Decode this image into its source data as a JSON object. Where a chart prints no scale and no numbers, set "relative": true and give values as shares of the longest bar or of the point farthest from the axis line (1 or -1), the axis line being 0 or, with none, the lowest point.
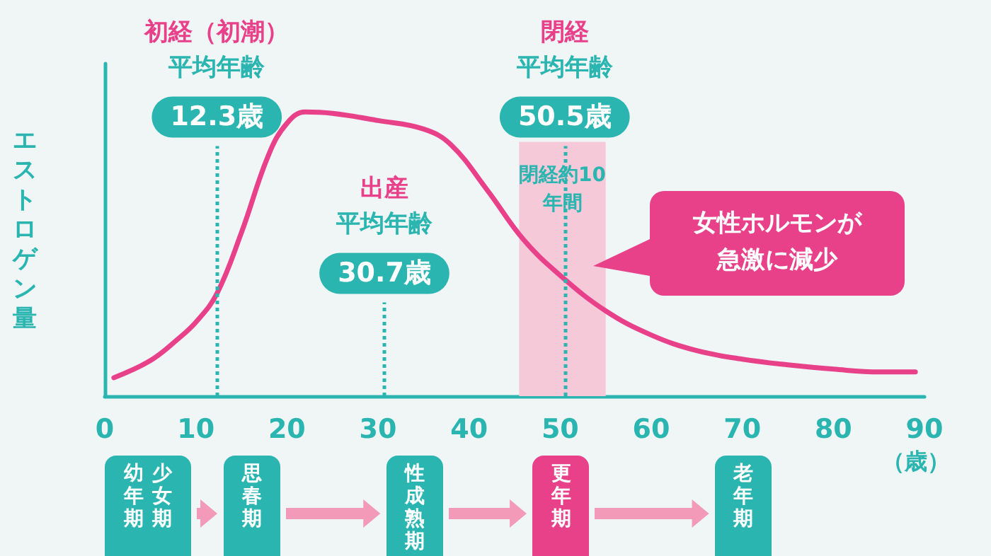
{
  "chart_data": {
    "type": "line",
    "relative": true,
    "ylabel": "エストロゲン量",
    "xlabel": "（歳）",
    "xlim": [
      0,
      90
    ],
    "xticks": [
      0,
      10,
      20,
      30,
      40,
      50,
      60,
      70,
      80,
      90
    ],
    "x": [
      1,
      5,
      8,
      10,
      12.3,
      15,
      18,
      20,
      22,
      25,
      30,
      35,
      38,
      42,
      46,
      50,
      55,
      60,
      65,
      70,
      75,
      80,
      85,
      89
    ],
    "series": [
      {
        "color": "#e8418a",
        "values": [
          0.065,
          0.125,
          0.2,
          0.26,
          0.36,
          0.575,
          0.85,
          0.96,
          1,
          0.995,
          0.97,
          0.94,
          0.885,
          0.725,
          0.55,
          0.425,
          0.3,
          0.215,
          0.16,
          0.13,
          0.11,
          0.095,
          0.085,
          0.085
        ]
      }
    ],
    "ref_lines": [
      {
        "axis": "x",
        "value": 12.3,
        "label": "12.3歳",
        "color": "#2bb5b0",
        "line_style": "dotted"
      },
      {
        "axis": "x",
        "value": 30.7,
        "label": "30.7歳",
        "color": "#2bb5b0",
        "line_style": "dotted"
      },
      {
        "axis": "x",
        "value": 50.5,
        "label": "50.5歳",
        "color": "#2bb5b0",
        "line_style": "dotted"
      }
    ],
    "bands": [
      {
        "axis": "x",
        "from": 45.5,
        "to": 55,
        "label": "閉経約10年間",
        "color": "#f6c9d8"
      }
    ],
    "annotations": [
      "初経（初潮）",
      "平均年齢",
      "出産",
      "平均年齢",
      "閉経",
      "平均年齢",
      "女性ホルモンが急激に減少",
      "幼年期",
      "少女期",
      "思春期",
      "性成熟期",
      "更年期",
      "老年期"
    ]
  }
}
